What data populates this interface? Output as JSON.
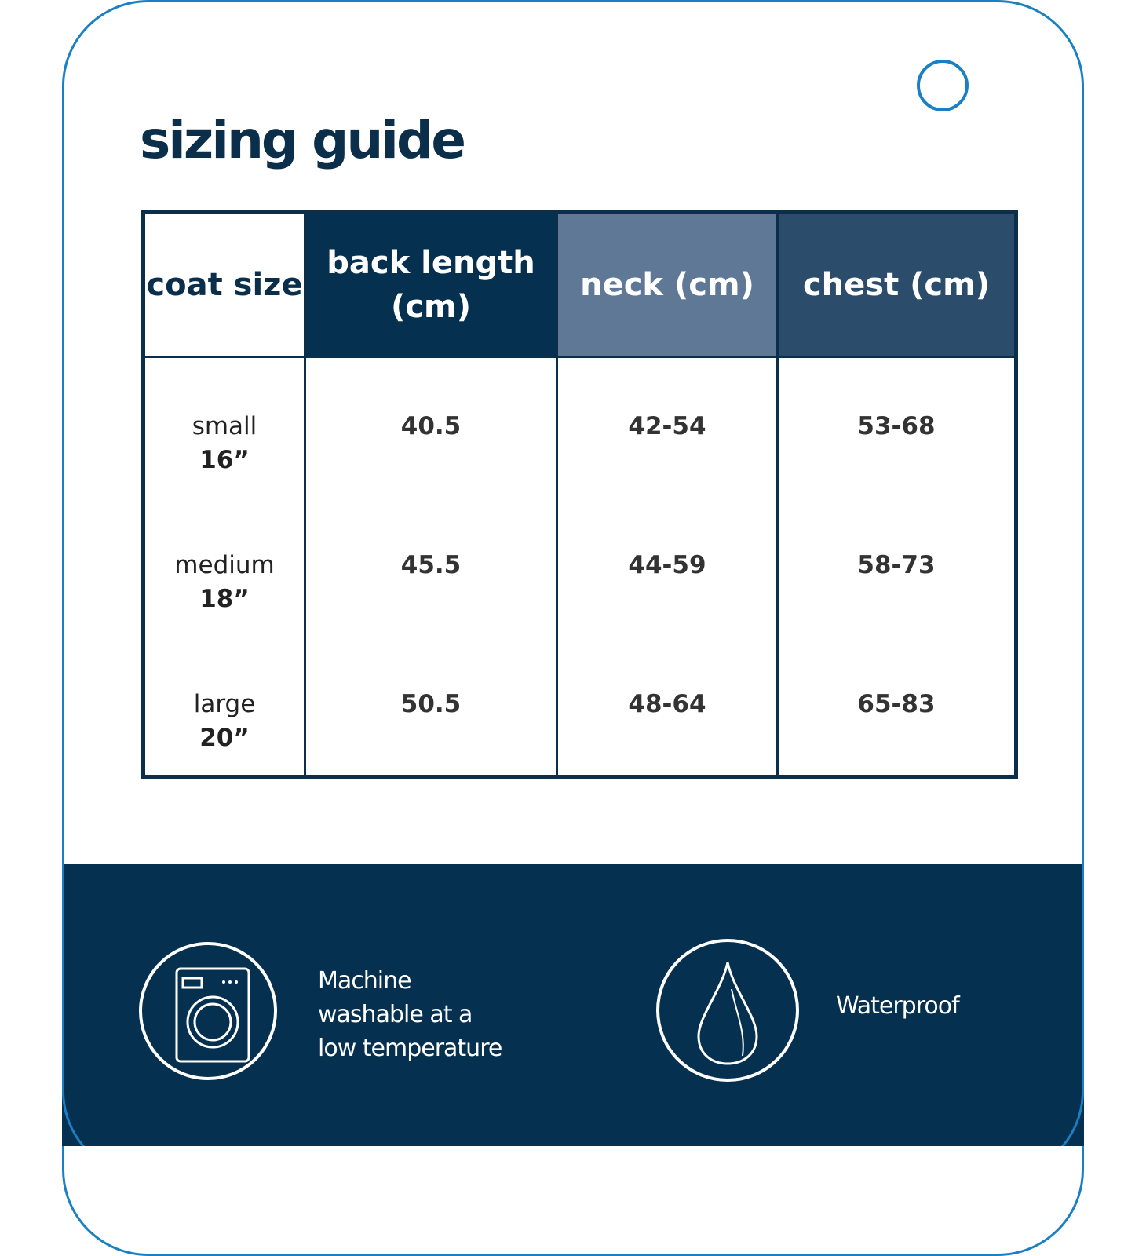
{
  "title": "sizing guide",
  "colors": {
    "accent_blue": "#1a80c4",
    "navy": "#06304f",
    "neck_header": "#5e7896",
    "chest_header": "#2b4d6b"
  },
  "table": {
    "headers": [
      "coat size",
      "back length (cm)",
      "neck (cm)",
      "chest (cm)"
    ],
    "rows": [
      {
        "size": "small",
        "inches": "16”",
        "back": "40.5",
        "neck": "42-54",
        "chest": "53-68"
      },
      {
        "size": "medium",
        "inches": "18”",
        "back": "45.5",
        "neck": "44-59",
        "chest": "58-73"
      },
      {
        "size": "large",
        "inches": "20”",
        "back": "50.5",
        "neck": "48-64",
        "chest": "65-83"
      }
    ]
  },
  "features": [
    {
      "icon": "washing-machine-icon",
      "lines": [
        "Machine",
        "washable at a",
        "low temperature"
      ]
    },
    {
      "icon": "water-drop-icon",
      "lines": [
        "Waterproof"
      ]
    }
  ]
}
